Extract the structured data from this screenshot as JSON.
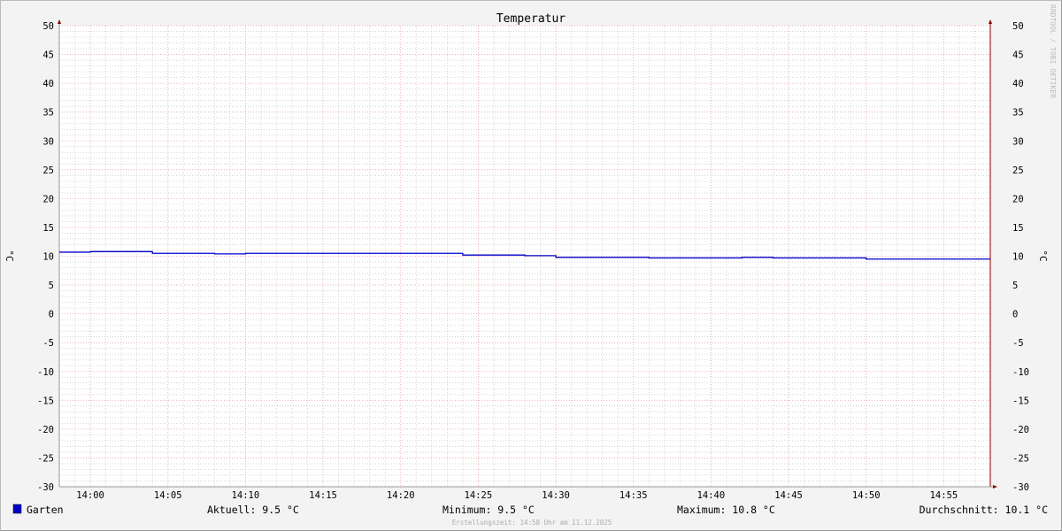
{
  "chart_data": {
    "type": "line",
    "title": "Temperatur",
    "ylabel": "°C",
    "ylabel_right": "°C",
    "ylim": [
      -30,
      50
    ],
    "yticks": [
      50,
      45,
      40,
      35,
      30,
      25,
      20,
      15,
      10,
      5,
      0,
      -5,
      -10,
      -15,
      -20,
      -25,
      -30
    ],
    "xlim": [
      "13:58",
      "14:58"
    ],
    "xticks": [
      "14:00",
      "14:05",
      "14:10",
      "14:15",
      "14:20",
      "14:25",
      "14:30",
      "14:35",
      "14:40",
      "14:45",
      "14:50",
      "14:55"
    ],
    "grid": true,
    "series": [
      {
        "name": "Garten",
        "color": "#0000cc",
        "step": true,
        "x": [
          "13:58",
          "14:00",
          "14:04",
          "14:08",
          "14:10",
          "14:24",
          "14:28",
          "14:30",
          "14:36",
          "14:42",
          "14:44",
          "14:50",
          "14:58"
        ],
        "y": [
          10.7,
          10.8,
          10.5,
          10.4,
          10.5,
          10.2,
          10.1,
          9.8,
          9.7,
          9.8,
          9.7,
          9.5,
          9.5
        ]
      }
    ],
    "legend": {
      "placement": "bottom",
      "name": "Garten",
      "current": "Aktuell: 9.5 °C",
      "minimum": "Minimum: 9.5 °C",
      "maximum": "Maximum: 10.8 °C",
      "average": "Durchschnitt: 10.1 °C"
    },
    "footer": "Erstellungszeit: 14:58 Uhr am 11.12.2025",
    "watermark": "RRDTOOL / TOBI OETIKER"
  }
}
